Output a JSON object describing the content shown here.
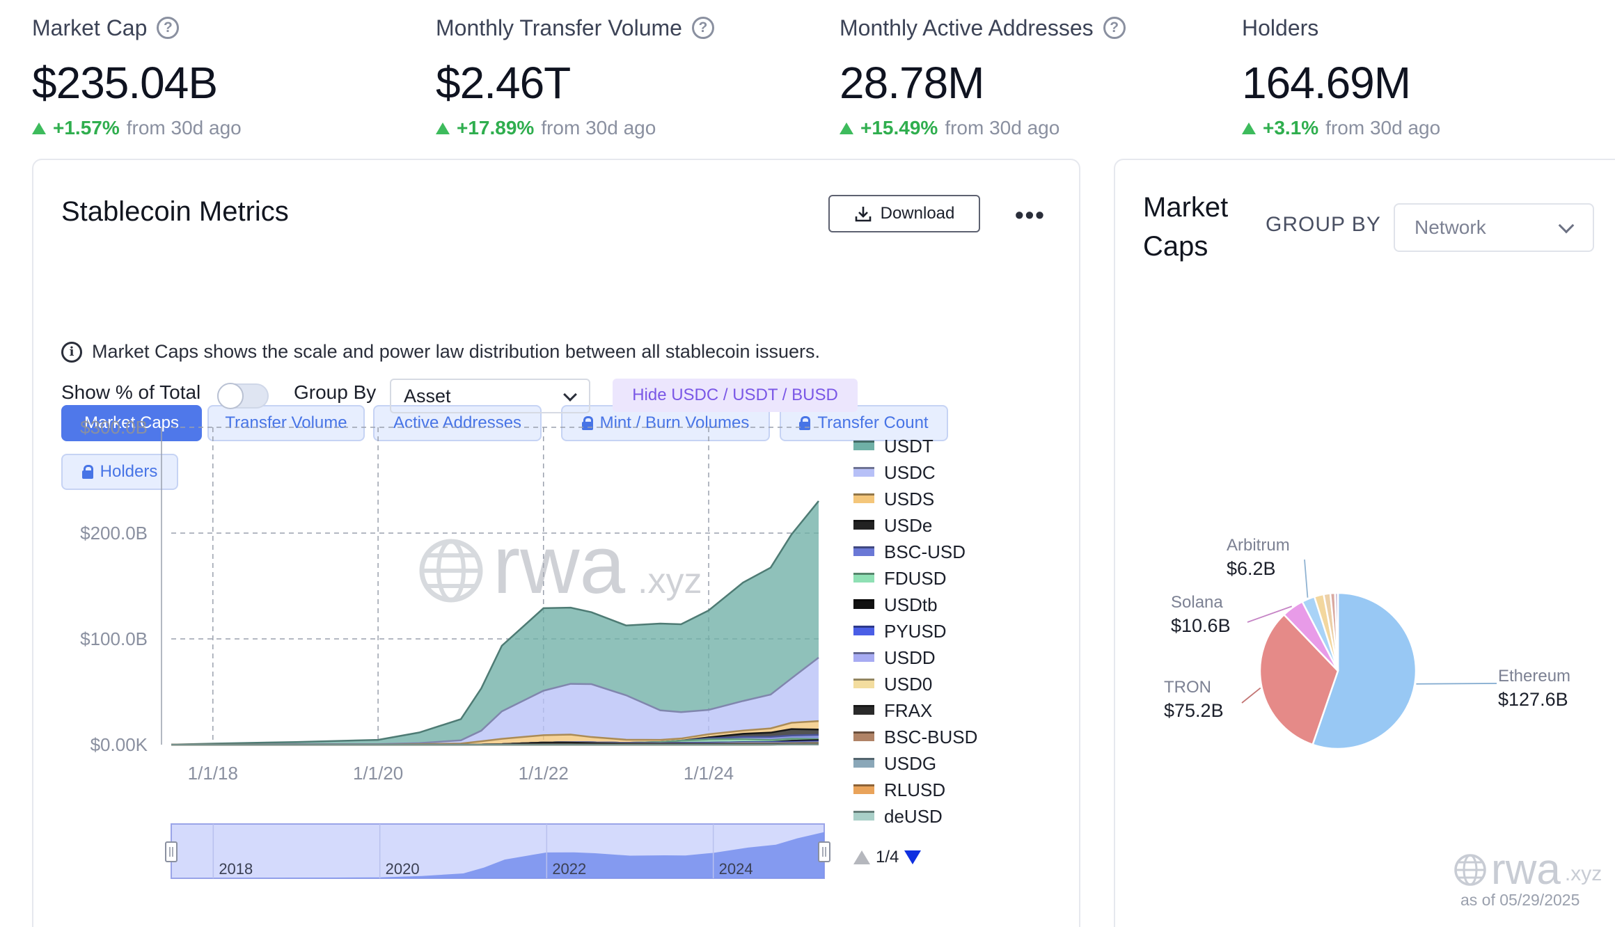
{
  "kpis": [
    {
      "label": "Market Cap",
      "value": "$235.04B",
      "change": "+1.57%",
      "since": "from 30d ago",
      "has_help": true
    },
    {
      "label": "Monthly Transfer Volume",
      "value": "$2.46T",
      "change": "+17.89%",
      "since": "from 30d ago",
      "has_help": true
    },
    {
      "label": "Monthly Active Addresses",
      "value": "28.78M",
      "change": "+15.49%",
      "since": "from 30d ago",
      "has_help": true
    },
    {
      "label": "Holders",
      "value": "164.69M",
      "change": "+3.1%",
      "since": "from 30d ago",
      "has_help": false
    }
  ],
  "metrics_card": {
    "title": "Stablecoin Metrics",
    "download_label": "Download",
    "more_label": "•••",
    "tabs": [
      {
        "label": "Market Caps",
        "active": true,
        "locked": false
      },
      {
        "label": "Transfer Volume",
        "active": false,
        "locked": false
      },
      {
        "label": "Active Addresses",
        "active": false,
        "locked": false
      },
      {
        "label": "Mint / Burn Volumes",
        "active": false,
        "locked": true
      },
      {
        "label": "Transfer Count",
        "active": false,
        "locked": true
      },
      {
        "label": "Holders",
        "active": false,
        "locked": true
      }
    ],
    "info_text": "Market Caps shows the scale and power law distribution between all stablecoin issuers.",
    "show_pct_label": "Show % of Total",
    "show_pct_on": false,
    "group_by_label": "Group By",
    "group_by_value": "Asset",
    "hide_button": "Hide USDC / USDT / BUSD",
    "pager": "1/4"
  },
  "chart_data": [
    {
      "type": "area",
      "stacked": true,
      "title": "",
      "xlabel": "",
      "ylabel": "",
      "ylim": [
        0,
        300
      ],
      "y_unit": "B USD",
      "y_ticks": [
        "$0.00K",
        "$100.0B",
        "$200.0B",
        "$300.0B"
      ],
      "x_ticks": [
        "1/1/18",
        "1/1/20",
        "1/1/22",
        "1/1/24"
      ],
      "x": [
        "2017-07",
        "2018-01",
        "2019-01",
        "2020-01",
        "2020-07",
        "2021-01",
        "2021-04",
        "2021-07",
        "2022-01",
        "2022-05",
        "2022-08",
        "2023-01",
        "2023-06",
        "2023-09",
        "2024-01",
        "2024-06",
        "2024-10",
        "2025-01",
        "2025-05"
      ],
      "series": [
        {
          "name": "USDT",
          "color": "#6fb0a6",
          "values": [
            0,
            1,
            2,
            4,
            10,
            20,
            40,
            62,
            78,
            72,
            68,
            66,
            82,
            83,
            94,
            112,
            120,
            136,
            148
          ]
        },
        {
          "name": "USDC",
          "color": "#b7c0f7",
          "values": [
            0,
            0,
            0.5,
            0.5,
            1,
            3,
            10,
            26,
            42,
            48,
            50,
            42,
            28,
            25,
            23,
            28,
            32,
            42,
            60
          ]
        },
        {
          "name": "USDS",
          "color": "#f4c67a",
          "values": [
            0,
            0,
            0,
            0,
            0.5,
            1,
            3,
            5,
            7,
            7,
            5,
            3,
            2,
            2,
            3,
            3,
            4,
            6,
            8
          ]
        },
        {
          "name": "USDe",
          "color": "#222222",
          "values": [
            0,
            0,
            0,
            0,
            0,
            0,
            0,
            0,
            0,
            0,
            0,
            0,
            0,
            0,
            1,
            3,
            4,
            6,
            5
          ]
        },
        {
          "name": "BSC-USD",
          "color": "#6a78d6",
          "values": [
            0,
            0,
            0,
            0,
            0,
            0,
            0,
            0,
            0,
            0,
            0,
            0,
            0,
            0,
            1,
            2,
            3,
            3,
            4
          ]
        },
        {
          "name": "FDUSD",
          "color": "#8fe0b4",
          "values": [
            0,
            0,
            0,
            0,
            0,
            0,
            0,
            0,
            0,
            0,
            0,
            0,
            1,
            2,
            3,
            3,
            2,
            2,
            1
          ]
        },
        {
          "name": "USDtb",
          "color": "#111111",
          "values": [
            0,
            0,
            0,
            0,
            0,
            0,
            0,
            0,
            0,
            0,
            0,
            0,
            0,
            0,
            0,
            0,
            0,
            1,
            1
          ]
        },
        {
          "name": "PYUSD",
          "color": "#4a5ee6",
          "values": [
            0,
            0,
            0,
            0,
            0,
            0,
            0,
            0,
            0,
            0,
            0,
            0,
            0,
            0.3,
            0.5,
            0.5,
            0.6,
            0.7,
            0.9
          ]
        },
        {
          "name": "USDD",
          "color": "#a7abf2",
          "values": [
            0,
            0,
            0,
            0,
            0,
            0,
            0,
            0,
            0,
            0.5,
            0.7,
            0.7,
            0.7,
            0.7,
            0.7,
            0.7,
            0.7,
            0.7,
            0.7
          ]
        },
        {
          "name": "USD0",
          "color": "#f3dd9f",
          "values": [
            0,
            0,
            0,
            0,
            0,
            0,
            0,
            0,
            0,
            0,
            0,
            0,
            0,
            0,
            0,
            0.5,
            0.5,
            0.6,
            0.6
          ]
        },
        {
          "name": "FRAX",
          "color": "#2a2a2a",
          "values": [
            0,
            0,
            0,
            0,
            0,
            0.1,
            0.2,
            0.5,
            2,
            2,
            1.5,
            1,
            0.8,
            0.8,
            0.7,
            0.6,
            0.5,
            0.4,
            0.4
          ]
        },
        {
          "name": "BSC-BUSD",
          "color": "#b08366",
          "values": [
            0,
            0,
            0,
            0,
            0,
            0,
            0,
            0,
            0,
            0,
            0,
            0,
            0,
            0,
            0,
            0,
            0,
            0,
            0
          ]
        },
        {
          "name": "USDG",
          "color": "#8aa7b8",
          "values": [
            0,
            0,
            0,
            0,
            0,
            0,
            0,
            0,
            0,
            0,
            0,
            0,
            0,
            0,
            0,
            0,
            0,
            0,
            0.2
          ]
        },
        {
          "name": "RLUSD",
          "color": "#e9a35a",
          "values": [
            0,
            0,
            0,
            0,
            0,
            0,
            0,
            0,
            0,
            0,
            0,
            0,
            0,
            0,
            0,
            0,
            0,
            0.1,
            0.3
          ]
        },
        {
          "name": "deUSD",
          "color": "#a9cfc8",
          "values": [
            0,
            0,
            0,
            0,
            0,
            0,
            0,
            0,
            0,
            0,
            0,
            0,
            0,
            0,
            0,
            0,
            0.1,
            0.2,
            0.2
          ]
        }
      ],
      "navigator": {
        "x_ticks": [
          "2018",
          "2020",
          "2022",
          "2024"
        ]
      },
      "grid": true,
      "legend_position": "right"
    },
    {
      "type": "pie",
      "title": "",
      "slices": [
        {
          "label": "Ethereum",
          "display": "$127.6B",
          "value": 127.6,
          "color": "#98c8f4"
        },
        {
          "label": "TRON",
          "display": "$75.2B",
          "value": 75.2,
          "color": "#e58a88"
        },
        {
          "label": "Solana",
          "display": "$10.6B",
          "value": 10.6,
          "color": "#e89be8"
        },
        {
          "label": "Arbitrum",
          "display": "$6.2B",
          "value": 6.2,
          "color": "#a9d3f7"
        },
        {
          "label": "",
          "display": "",
          "value": 4.5,
          "color": "#f3d79e"
        },
        {
          "label": "",
          "display": "",
          "value": 3.2,
          "color": "#ecd0a8"
        },
        {
          "label": "",
          "display": "",
          "value": 2.2,
          "color": "#d9a9a0"
        },
        {
          "label": "",
          "display": "",
          "value": 1.4,
          "color": "#c9b8d6"
        }
      ]
    }
  ],
  "caps_card": {
    "title_line1": "Market",
    "title_line2": "Caps",
    "group_by_label": "GROUP BY",
    "group_by_value": "Network",
    "as_of": "as of 05/29/2025"
  },
  "watermark": {
    "brand": "rwa",
    "suffix": ".xyz"
  }
}
